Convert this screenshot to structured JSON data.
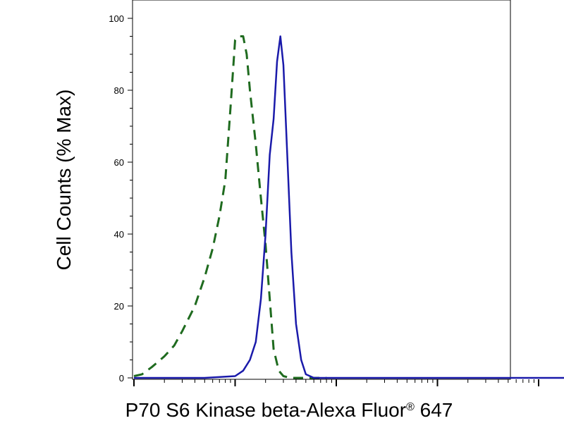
{
  "chart_data": {
    "type": "line",
    "title": "",
    "xlabel": "P70 S6 Kinase beta-Alexa Fluor",
    "xlabel_superscript": "®",
    "xlabel_suffix": " 647",
    "ylabel": "Cell Counts (% Max)",
    "x_scale": "log",
    "xlim": [
      1,
      40000
    ],
    "x_major_ticks": [
      1,
      10,
      100,
      1000,
      10000
    ],
    "ylim": [
      0,
      100
    ],
    "y_ticks": [
      0,
      20,
      40,
      60,
      80,
      100
    ],
    "y_tick_labels": [
      "0",
      "20",
      "40",
      "60",
      "80",
      "100"
    ],
    "grid": false,
    "legend": false,
    "series": [
      {
        "style": "dashed",
        "color": "#1f6b1f",
        "x": [
          1,
          1.2,
          1.5,
          2,
          2.5,
          3,
          4,
          5,
          6,
          7,
          8,
          9,
          10,
          11,
          12,
          13,
          14,
          16,
          18,
          20,
          22,
          24,
          27,
          30,
          35,
          40,
          50,
          60,
          80
        ],
        "y": [
          0.5,
          1,
          3,
          6,
          9,
          13,
          20,
          28,
          36,
          45,
          55,
          75,
          94,
          95,
          95,
          90,
          80,
          65,
          50,
          37,
          22,
          8,
          2,
          0.5,
          0,
          0,
          0,
          0,
          0
        ]
      },
      {
        "style": "solid",
        "color": "#1a1aaa",
        "x": [
          1,
          5,
          10,
          12,
          14,
          16,
          18,
          20,
          22,
          24,
          26,
          28,
          30,
          33,
          36,
          40,
          45,
          50,
          60,
          80,
          100,
          1000,
          10000,
          40000
        ],
        "y": [
          0,
          0,
          0.5,
          2,
          5,
          10,
          22,
          40,
          62,
          72,
          88,
          95,
          87,
          60,
          35,
          15,
          5,
          1,
          0,
          0,
          0,
          0,
          0,
          0
        ]
      }
    ]
  }
}
